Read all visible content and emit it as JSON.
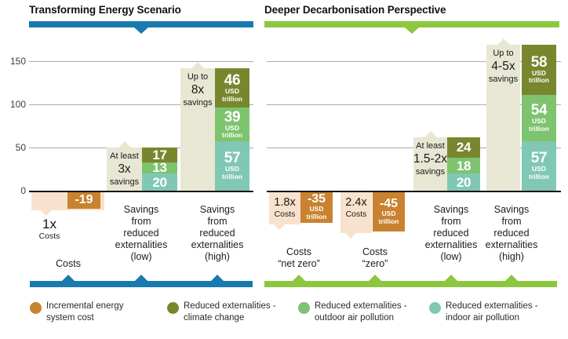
{
  "chart_data": {
    "type": "bar",
    "title_left": "Transforming Energy Scenario",
    "title_right": "Deeper Decarbonisation Perspective",
    "unit": "USD trillion",
    "y_axis": {
      "ticks": [
        0,
        50,
        100,
        150
      ],
      "range": [
        -50,
        175
      ],
      "grid": true
    },
    "colors": {
      "cost": "#c9822f",
      "cost_callout": "#f8e2cd",
      "savings_callout": "#e7e7d3",
      "climate_change": "#78872e",
      "outdoor_air_pollution": "#7ec36d",
      "indoor_air_pollution": "#80c8b4",
      "accent_left": "#187aae",
      "accent_right": "#8dc63f"
    },
    "panels": [
      {
        "title": "Transforming Energy Scenario",
        "accent_color": "#187aae",
        "columns": [
          {
            "kind": "cost",
            "multiplier": "1x",
            "multiplier_sub": "Costs",
            "multiplier_inside": false,
            "value": -19,
            "value_label": "-19",
            "show_unit": false,
            "axis_label_lines": [
              "Costs"
            ]
          },
          {
            "kind": "savings",
            "callout_lines": [
              "At least",
              "3x",
              "savings"
            ],
            "show_unit": false,
            "segments": [
              {
                "series": "climate_change",
                "value": 17
              },
              {
                "series": "outdoor_air_pollution",
                "value": 13
              },
              {
                "series": "indoor_air_pollution",
                "value": 20
              }
            ],
            "axis_label_lines": [
              "Savings",
              "from",
              "reduced",
              "externalities",
              "(low)"
            ]
          },
          {
            "kind": "savings",
            "callout_lines": [
              "Up to",
              "8x",
              "savings"
            ],
            "show_unit": true,
            "segments": [
              {
                "series": "climate_change",
                "value": 46
              },
              {
                "series": "outdoor_air_pollution",
                "value": 39
              },
              {
                "series": "indoor_air_pollution",
                "value": 57
              }
            ],
            "axis_label_lines": [
              "Savings",
              "from",
              "reduced",
              "externalities",
              "(high)"
            ]
          }
        ]
      },
      {
        "title": "Deeper Decarbonisation Perspective",
        "accent_color": "#8dc63f",
        "columns": [
          {
            "kind": "cost",
            "multiplier": "1.8x",
            "multiplier_sub": "Costs",
            "multiplier_inside": true,
            "value": -35,
            "value_label": "-35",
            "show_unit": true,
            "axis_label_lines": [
              "Costs",
              "“net zero”"
            ]
          },
          {
            "kind": "cost",
            "multiplier": "2.4x",
            "multiplier_sub": "Costs",
            "multiplier_inside": true,
            "value": -45,
            "value_label": "-45",
            "show_unit": true,
            "axis_label_lines": [
              "Costs",
              "“zero”"
            ]
          },
          {
            "kind": "savings",
            "callout_lines": [
              "At least",
              "1.5-2x",
              "savings"
            ],
            "show_unit": false,
            "segments": [
              {
                "series": "climate_change",
                "value": 24
              },
              {
                "series": "outdoor_air_pollution",
                "value": 18
              },
              {
                "series": "indoor_air_pollution",
                "value": 20
              }
            ],
            "axis_label_lines": [
              "Savings",
              "from",
              "reduced",
              "externalities",
              "(low)"
            ]
          },
          {
            "kind": "savings",
            "callout_lines": [
              "Up to",
              "4-5x",
              "savings"
            ],
            "show_unit": true,
            "segments": [
              {
                "series": "climate_change",
                "value": 58
              },
              {
                "series": "outdoor_air_pollution",
                "value": 54
              },
              {
                "series": "indoor_air_pollution",
                "value": 57
              }
            ],
            "axis_label_lines": [
              "Savings",
              "from",
              "reduced",
              "externalities",
              "(high)"
            ]
          }
        ]
      }
    ],
    "legend": [
      {
        "series": "cost",
        "label": "Incremental energy system cost",
        "label_lines": [
          "Incremental energy",
          "system cost"
        ]
      },
      {
        "series": "climate_change",
        "label": "Reduced externalities - climate change",
        "label_lines": [
          "Reduced externalities -",
          "climate change"
        ]
      },
      {
        "series": "outdoor_air_pollution",
        "label": "Reduced externalities - outdoor air pollution",
        "label_lines": [
          "Reduced externalities -",
          "outdoor air pollution"
        ]
      },
      {
        "series": "indoor_air_pollution",
        "label": "Reduced externalities - indoor air pollution",
        "label_lines": [
          "Reduced externalities -",
          "indoor air pollution"
        ]
      }
    ]
  }
}
